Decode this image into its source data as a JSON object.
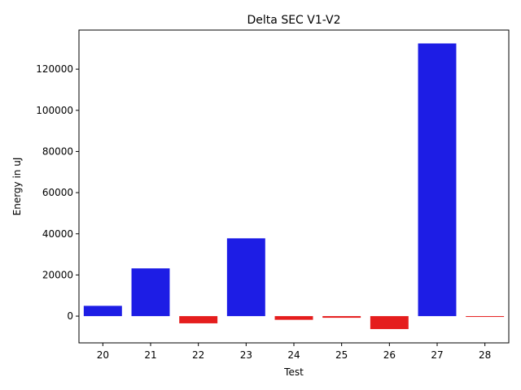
{
  "chart_data": {
    "type": "bar",
    "title": "Delta SEC V1-V2",
    "xlabel": "Test",
    "ylabel": "Energy in uJ",
    "categories": [
      "20",
      "21",
      "22",
      "23",
      "24",
      "25",
      "26",
      "27",
      "28"
    ],
    "values": [
      5000,
      23200,
      -3500,
      37800,
      -1800,
      -800,
      -6300,
      132500,
      -300
    ],
    "ylim": [
      -13000,
      139000
    ],
    "yticks": [
      0,
      20000,
      40000,
      60000,
      80000,
      100000,
      120000
    ],
    "colors": {
      "positive": "#1d1de5",
      "negative": "#e51d1d"
    },
    "grid": false,
    "legend": "none"
  }
}
